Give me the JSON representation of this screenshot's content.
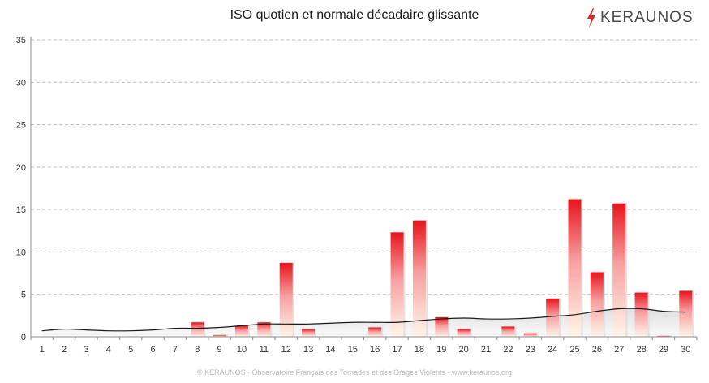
{
  "header": {
    "title": "ISO quotien et normale décadaire glissante",
    "logo_text": "KERAUNOS",
    "logo_color": "#e4262a"
  },
  "footer": {
    "text": "© KERAUNOS - Observatoire Français des Tornades et des Orages Violents - www.keraunos.org"
  },
  "chart_data": {
    "type": "bar",
    "title": "ISO quotien et normale décadaire glissante",
    "xlabel": "",
    "ylabel": "",
    "ylim": [
      0,
      35
    ],
    "yticks": [
      0,
      5,
      10,
      15,
      20,
      25,
      30,
      35
    ],
    "grid": true,
    "categories": [
      "1",
      "2",
      "3",
      "4",
      "5",
      "6",
      "7",
      "8",
      "9",
      "10",
      "11",
      "12",
      "13",
      "14",
      "15",
      "16",
      "17",
      "18",
      "19",
      "20",
      "21",
      "22",
      "23",
      "24",
      "25",
      "26",
      "27",
      "28",
      "29",
      "30"
    ],
    "series": [
      {
        "kind": "bar",
        "color_top": "#e8141c",
        "color_bottom": "#fff6ea",
        "values": [
          0,
          0,
          0,
          0,
          0,
          0,
          0,
          1.7,
          0.2,
          1.3,
          1.7,
          8.7,
          0.9,
          0,
          0,
          1.1,
          12.3,
          13.7,
          2.3,
          0.9,
          0,
          1.2,
          0.4,
          4.5,
          16.2,
          7.6,
          15.7,
          5.2,
          0.1,
          5.4
        ]
      },
      {
        "kind": "line",
        "color": "#1a1a1a",
        "values": [
          0.7,
          0.9,
          0.8,
          0.7,
          0.7,
          0.8,
          1.0,
          1.0,
          1.1,
          1.3,
          1.5,
          1.5,
          1.5,
          1.6,
          1.7,
          1.7,
          1.7,
          1.9,
          2.1,
          2.2,
          2.1,
          2.1,
          2.2,
          2.4,
          2.6,
          3.0,
          3.3,
          3.3,
          3.0,
          2.9
        ]
      }
    ]
  }
}
